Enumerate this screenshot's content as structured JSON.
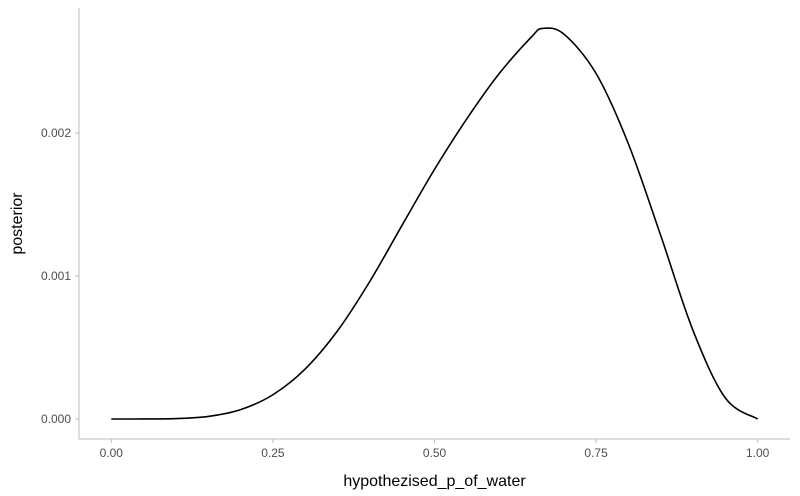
{
  "chart_data": {
    "type": "line",
    "xlabel": "hypothezised_p_of_water",
    "ylabel": "posterior",
    "xlim": [
      -0.05,
      1.05
    ],
    "ylim": [
      -0.00014,
      0.002875
    ],
    "x_ticks": [
      0.0,
      0.25,
      0.5,
      0.75,
      1.0
    ],
    "x_tick_labels": [
      "0.00",
      "0.25",
      "0.50",
      "0.75",
      "1.00"
    ],
    "y_ticks": [
      0.0,
      0.001,
      0.002
    ],
    "y_tick_labels": [
      "0.000",
      "0.001",
      "0.002"
    ],
    "grid": false,
    "line_color": "#000000",
    "axis_color": "#bdbdbd",
    "series": [
      {
        "x": [
          0.0,
          0.05,
          0.1,
          0.15,
          0.2,
          0.25,
          0.3,
          0.35,
          0.4,
          0.45,
          0.5,
          0.55,
          0.6,
          0.65,
          0.667,
          0.7,
          0.75,
          0.8,
          0.85,
          0.9,
          0.95,
          1.0
        ],
        "values": [
          0.0,
          1e-07,
          2.7e-06,
          1.79e-05,
          6.55e-05,
          0.0001695,
          0.0003502,
          0.0006172,
          0.0009627,
          0.0013565,
          0.0017461,
          0.0020997,
          0.0024157,
          0.0026724,
          0.002732,
          0.0026929,
          0.0024166,
          0.0019246,
          0.0012833,
          0.0006187,
          0.0001467,
          0.0
        ]
      }
    ]
  }
}
